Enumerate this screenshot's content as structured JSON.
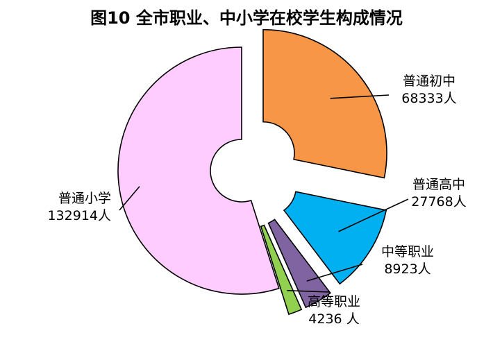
{
  "chart_data": {
    "type": "pie",
    "title": "图10  全市职业、中小学在校学生构成情况",
    "series": [
      {
        "name": "普通初中",
        "value": 68333,
        "value_label": "68333人",
        "color": "#F79646",
        "explode": true
      },
      {
        "name": "普通高中",
        "value": 27768,
        "value_label": "27768人",
        "color": "#00B0F0",
        "explode": true
      },
      {
        "name": "中等职业",
        "value": 8923,
        "value_label": "8923人",
        "color": "#8064A2",
        "explode": true
      },
      {
        "name": "高等职业",
        "value": 4236,
        "value_label": "4236 人",
        "color": "#92D050",
        "explode": true
      },
      {
        "name": "普通小学",
        "value": 132914,
        "value_label": "132914人",
        "color": "#FFCCFF",
        "explode": false
      }
    ],
    "donut": true,
    "legend": "none"
  }
}
